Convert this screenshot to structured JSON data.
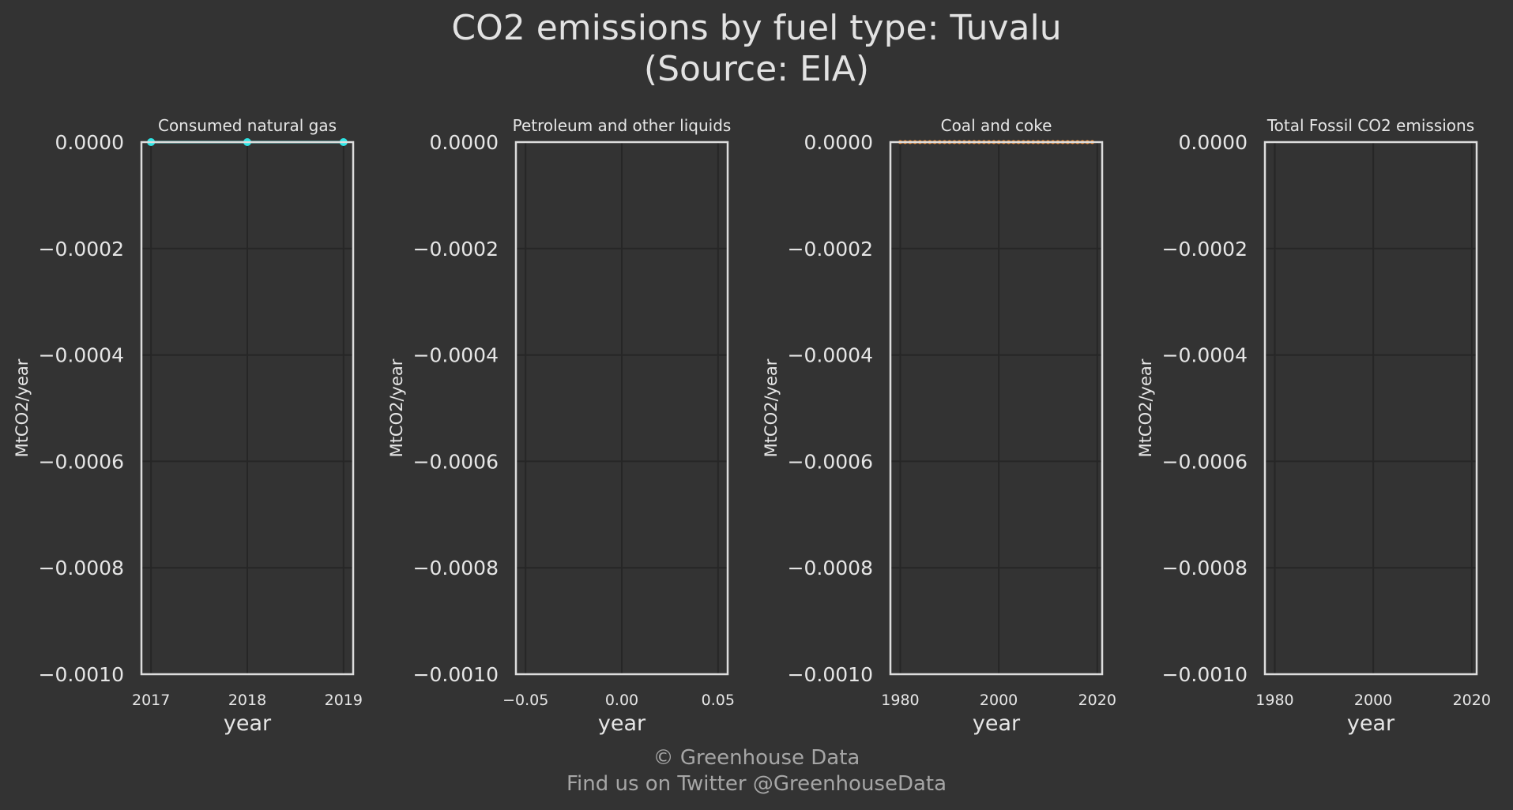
{
  "title": "CO2 emissions by fuel type: Tuvalu",
  "subtitle": "(Source: EIA)",
  "footer": {
    "line1": "© Greenhouse Data",
    "line2": "Find us on Twitter @GreenhouseData"
  },
  "colors": {
    "background": "#333333",
    "grid": "#262626",
    "axis": "#dddddd",
    "text": "#e6e6e6",
    "natural_gas": "#2ee6e6",
    "coal": "#f28c33"
  },
  "chart_data": [
    {
      "type": "line",
      "title": "Consumed natural gas",
      "xlabel": "year",
      "ylabel": "MtCO2/year",
      "xlim": [
        2016.9,
        2019.1
      ],
      "ylim": [
        -0.001,
        0.0
      ],
      "xticks": [
        2017,
        2018,
        2019
      ],
      "xtick_labels": [
        "2017",
        "2018",
        "2019"
      ],
      "yticks": [
        0.0,
        -0.0002,
        -0.0004,
        -0.0006,
        -0.0008,
        -0.001
      ],
      "ytick_labels": [
        "0.0000",
        "−0.0002",
        "−0.0004",
        "−0.0006",
        "−0.0008",
        "−0.0010"
      ],
      "grid": true,
      "series": [
        {
          "color": "#2ee6e6",
          "markers": true,
          "x": [
            2017,
            2018,
            2019
          ],
          "y": [
            0,
            0,
            0
          ]
        }
      ]
    },
    {
      "type": "line",
      "title": "Petroleum and other liquids",
      "xlabel": "year",
      "ylabel": "MtCO2/year",
      "xlim": [
        -0.055,
        0.055
      ],
      "ylim": [
        -0.001,
        0.0
      ],
      "xticks": [
        -0.05,
        0.0,
        0.05
      ],
      "xtick_labels": [
        "−0.05",
        "0.00",
        "0.05"
      ],
      "yticks": [
        0.0,
        -0.0002,
        -0.0004,
        -0.0006,
        -0.0008,
        -0.001
      ],
      "ytick_labels": [
        "0.0000",
        "−0.0002",
        "−0.0004",
        "−0.0006",
        "−0.0008",
        "−0.0010"
      ],
      "grid": true,
      "series": []
    },
    {
      "type": "line",
      "title": "Coal and coke",
      "xlabel": "year",
      "ylabel": "MtCO2/year",
      "xlim": [
        1978,
        2021
      ],
      "ylim": [
        -0.001,
        0.0
      ],
      "xticks": [
        1980,
        2000,
        2020
      ],
      "xtick_labels": [
        "1980",
        "2000",
        "2020"
      ],
      "yticks": [
        0.0,
        -0.0002,
        -0.0004,
        -0.0006,
        -0.0008,
        -0.001
      ],
      "ytick_labels": [
        "0.0000",
        "−0.0002",
        "−0.0004",
        "−0.0006",
        "−0.0008",
        "−0.0010"
      ],
      "grid": true,
      "series": [
        {
          "color": "#f28c33",
          "markers": true,
          "x": [
            1980,
            1981,
            1982,
            1983,
            1984,
            1985,
            1986,
            1987,
            1988,
            1989,
            1990,
            1991,
            1992,
            1993,
            1994,
            1995,
            1996,
            1997,
            1998,
            1999,
            2000,
            2001,
            2002,
            2003,
            2004,
            2005,
            2006,
            2007,
            2008,
            2009,
            2010,
            2011,
            2012,
            2013,
            2014,
            2015,
            2016,
            2017,
            2018,
            2019
          ],
          "y": [
            0,
            0,
            0,
            0,
            0,
            0,
            0,
            0,
            0,
            0,
            0,
            0,
            0,
            0,
            0,
            0,
            0,
            0,
            0,
            0,
            0,
            0,
            0,
            0,
            0,
            0,
            0,
            0,
            0,
            0,
            0,
            0,
            0,
            0,
            0,
            0,
            0,
            0,
            0,
            0
          ]
        }
      ]
    },
    {
      "type": "line",
      "title": "Total Fossil CO2 emissions",
      "xlabel": "year",
      "ylabel": "MtCO2/year",
      "xlim": [
        1978,
        2021
      ],
      "ylim": [
        -0.001,
        0.0
      ],
      "xticks": [
        1980,
        2000,
        2020
      ],
      "xtick_labels": [
        "1980",
        "2000",
        "2020"
      ],
      "yticks": [
        0.0,
        -0.0002,
        -0.0004,
        -0.0006,
        -0.0008,
        -0.001
      ],
      "ytick_labels": [
        "0.0000",
        "−0.0002",
        "−0.0004",
        "−0.0006",
        "−0.0008",
        "−0.0010"
      ],
      "grid": true,
      "series": []
    }
  ]
}
